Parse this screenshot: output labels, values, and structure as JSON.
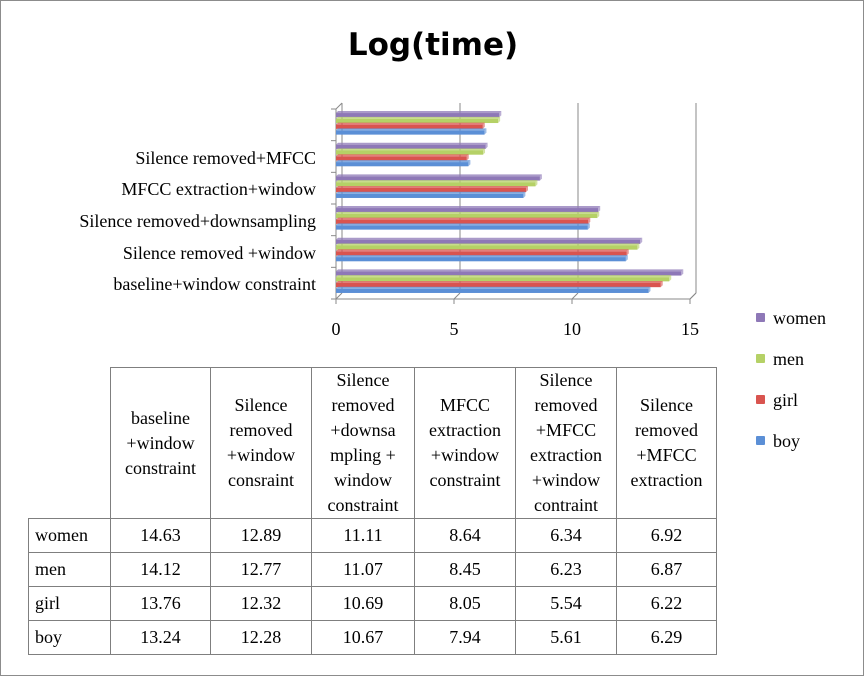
{
  "chart_data": {
    "type": "bar",
    "orientation": "horizontal",
    "title": "Log(time)",
    "categories": [
      "baseline+window constraint",
      "Silence removed +window",
      "Silence removed+downsampling",
      "MFCC extraction+window",
      "Silence removed+MFCC",
      ""
    ],
    "table_headers": [
      [
        "baseline",
        "+window",
        "constraint"
      ],
      [
        "Silence",
        "removed",
        "+window",
        "consraint"
      ],
      [
        "Silence",
        "removed",
        "+downsa",
        "mpling +",
        "window",
        "constraint"
      ],
      [
        "MFCC",
        "extraction",
        "+window",
        "constraint"
      ],
      [
        "Silence",
        "removed",
        "+MFCC",
        "extraction",
        "+window",
        "contraint"
      ],
      [
        "Silence",
        "removed",
        "+MFCC",
        "extraction"
      ]
    ],
    "series": [
      {
        "name": "women",
        "color": "#8e78b7",
        "values": [
          14.63,
          12.89,
          11.11,
          8.64,
          6.34,
          6.92
        ]
      },
      {
        "name": "men",
        "color": "#b5d166",
        "values": [
          14.12,
          12.77,
          11.07,
          8.45,
          6.23,
          6.87
        ]
      },
      {
        "name": "girl",
        "color": "#d9544f",
        "values": [
          13.76,
          12.32,
          10.69,
          8.05,
          5.54,
          6.22
        ]
      },
      {
        "name": "boy",
        "color": "#5b8fd6",
        "values": [
          13.24,
          12.28,
          10.67,
          7.94,
          5.61,
          6.29
        ]
      }
    ],
    "xlim": [
      0,
      15
    ],
    "xticks": [
      0,
      5,
      10,
      15
    ],
    "grid": true,
    "legend_position": "right"
  }
}
